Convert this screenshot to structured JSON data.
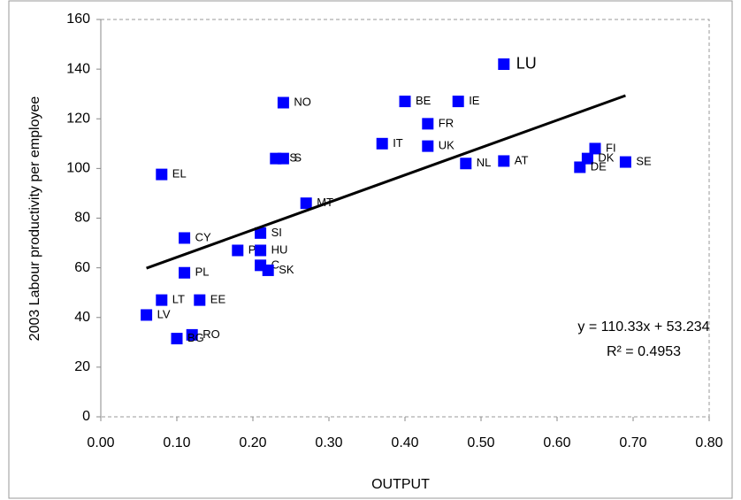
{
  "chart_data": {
    "type": "scatter",
    "xlabel": "OUTPUT",
    "ylabel": "2003 Labour productivity per employee",
    "x": [
      0.53,
      0.4,
      0.47,
      0.24,
      0.43,
      0.37,
      0.43,
      0.65,
      0.23,
      0.24,
      0.53,
      0.48,
      0.69,
      0.64,
      0.63,
      0.08,
      0.27,
      0.21,
      0.11,
      0.18,
      0.21,
      0.21,
      0.22,
      0.11,
      0.08,
      0.13,
      0.06,
      0.12,
      0.1
    ],
    "values": [
      142,
      127,
      127,
      126.5,
      118,
      110,
      109,
      108,
      104,
      104,
      103,
      102,
      102.6,
      104,
      100.5,
      97.6,
      86,
      74,
      72,
      67,
      67,
      61,
      59,
      58,
      47,
      47,
      41,
      33,
      31.5
    ],
    "labels": [
      "LU",
      "BE",
      "IE",
      "NO",
      "FR",
      "IT",
      "UK",
      "FI",
      "IS",
      "S",
      "AT",
      "NL",
      "SE",
      "DK",
      "DE",
      "EL",
      "MT",
      "SI",
      "CY",
      "PT",
      "HU",
      "C",
      "SK",
      "PL",
      "LT",
      "EE",
      "LV",
      "RO",
      "BG"
    ],
    "color": "#0000ff",
    "xlim": [
      0,
      0.8
    ],
    "ylim": [
      0,
      160
    ],
    "xticks": [
      {
        "value": 0,
        "label": "0.00"
      },
      {
        "value": 0.1,
        "label": "0.10"
      },
      {
        "value": 0.2,
        "label": "0.20"
      },
      {
        "value": 0.3,
        "label": "0.30"
      },
      {
        "value": 0.4,
        "label": "0.40"
      },
      {
        "value": 0.5,
        "label": "0.50"
      },
      {
        "value": 0.6,
        "label": "0.60"
      },
      {
        "value": 0.7,
        "label": "0.70"
      },
      {
        "value": 0.8,
        "label": "0.80"
      }
    ],
    "yticks": [
      0,
      20,
      40,
      60,
      80,
      100,
      120,
      140,
      160
    ],
    "trendline": {
      "slope": 110.33,
      "intercept": 53.234,
      "x_range": [
        0.06,
        0.69
      ],
      "equation": "y = 110.33x + 53.234",
      "r2_label": "R² = 0.4953",
      "color": "#000000"
    }
  }
}
